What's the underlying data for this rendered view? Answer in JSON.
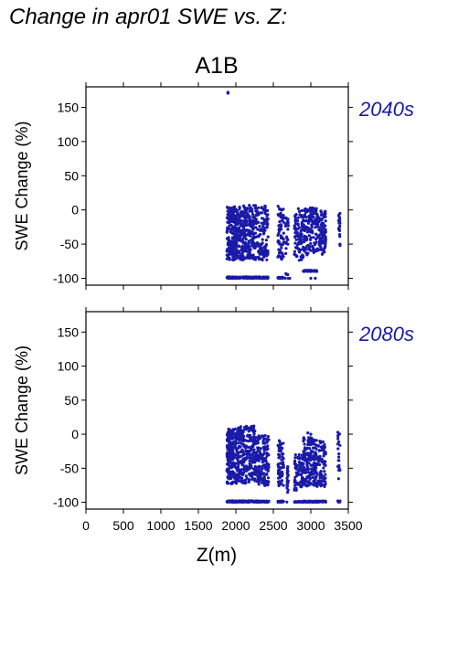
{
  "figure_title": "Change in apr01 SWE vs. Z:",
  "scenario_title": "A1B",
  "colors": {
    "points": "#1a1aa8",
    "period_label": "#1a1aa8"
  },
  "chart_data": [
    {
      "type": "scatter",
      "period_label": "2040s",
      "xlabel": "Z(m)",
      "ylabel": "SWE Change (%)",
      "xlim": [
        0,
        3500
      ],
      "ylim": [
        -110,
        180
      ],
      "xticks": [
        0,
        500,
        1000,
        1500,
        2000,
        2500,
        3000,
        3500
      ],
      "yticks": [
        -100,
        -50,
        0,
        50,
        100,
        150
      ],
      "x_tick_labels_visible": false,
      "clusters": [
        {
          "x": [
            1875,
            1905
          ],
          "y": [
            170,
            172
          ],
          "n": 3
        },
        {
          "x": [
            1880,
            2010
          ],
          "y": [
            -100,
            5
          ],
          "n": 260
        },
        {
          "x": [
            2010,
            2200
          ],
          "y": [
            -100,
            7
          ],
          "n": 300
        },
        {
          "x": [
            2200,
            2430
          ],
          "y": [
            -100,
            7
          ],
          "n": 260
        },
        {
          "x": [
            2560,
            2640
          ],
          "y": [
            -100,
            7
          ],
          "n": 90
        },
        {
          "x": [
            2660,
            2700
          ],
          "y": [
            -95,
            0
          ],
          "n": 25
        },
        {
          "x": [
            2780,
            2900
          ],
          "y": [
            -75,
            2
          ],
          "n": 90
        },
        {
          "x": [
            2900,
            3080
          ],
          "y": [
            -90,
            3
          ],
          "n": 180
        },
        {
          "x": [
            3080,
            3200
          ],
          "y": [
            -65,
            0
          ],
          "n": 100
        },
        {
          "x": [
            3370,
            3390
          ],
          "y": [
            -55,
            0
          ],
          "n": 20
        }
      ],
      "sparse_points": [
        {
          "x": [
            2620,
            2660
          ],
          "y": [
            -100,
            -100
          ]
        },
        {
          "x": [
            2700,
            2720
          ],
          "y": [
            -100,
            -100
          ]
        },
        {
          "x": [
            2960,
            3000
          ],
          "y": [
            -90,
            -100
          ]
        },
        {
          "x": [
            3060,
            3080
          ],
          "y": [
            -100,
            -90
          ]
        }
      ]
    },
    {
      "type": "scatter",
      "period_label": "2080s",
      "xlabel": "Z(m)",
      "ylabel": "SWE Change (%)",
      "xlim": [
        0,
        3500
      ],
      "ylim": [
        -110,
        180
      ],
      "xticks": [
        0,
        500,
        1000,
        1500,
        2000,
        2500,
        3000,
        3500
      ],
      "yticks": [
        -100,
        -50,
        0,
        50,
        100,
        150
      ],
      "x_tick_labels_visible": true,
      "clusters": [
        {
          "x": [
            1880,
            2010
          ],
          "y": [
            -100,
            8
          ],
          "n": 260
        },
        {
          "x": [
            2010,
            2260
          ],
          "y": [
            -100,
            12
          ],
          "n": 330
        },
        {
          "x": [
            2260,
            2440
          ],
          "y": [
            -100,
            -2
          ],
          "n": 240
        },
        {
          "x": [
            2560,
            2640
          ],
          "y": [
            -100,
            -8
          ],
          "n": 90
        },
        {
          "x": [
            2680,
            2700
          ],
          "y": [
            -100,
            -45
          ],
          "n": 20
        },
        {
          "x": [
            2780,
            2900
          ],
          "y": [
            -100,
            -30
          ],
          "n": 110
        },
        {
          "x": [
            2900,
            3080
          ],
          "y": [
            -100,
            -5
          ],
          "n": 220
        },
        {
          "x": [
            3080,
            3200
          ],
          "y": [
            -100,
            -10
          ],
          "n": 120
        },
        {
          "x": [
            3360,
            3390
          ],
          "y": [
            -100,
            3
          ],
          "n": 30
        }
      ],
      "sparse_points": [
        {
          "x": [
            2220,
            2240
          ],
          "y": [
            10,
            12
          ]
        },
        {
          "x": [
            2960,
            3000
          ],
          "y": [
            2,
            0
          ]
        }
      ]
    }
  ]
}
